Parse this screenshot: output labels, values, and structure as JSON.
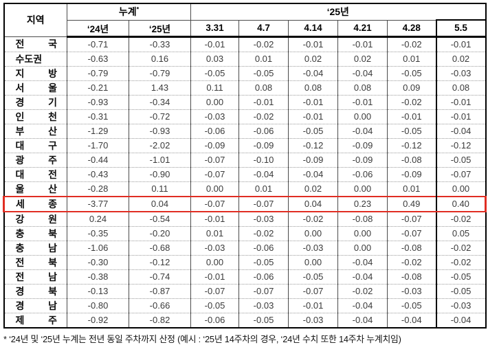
{
  "table": {
    "corner_header": "지역",
    "group_headers": {
      "cumulative": "누계",
      "cumulative_note_mark": "*",
      "year_2025": "‘25년"
    },
    "sub_headers": [
      "‘24년",
      "‘25년",
      "3.31",
      "4.7",
      "4.14",
      "4.21",
      "4.28",
      "5.5"
    ],
    "highlight_color": "#e02d22",
    "rows": [
      {
        "region": "전 국",
        "highlight": false,
        "values": [
          "-0.71",
          "-0.33",
          "-0.01",
          "-0.02",
          "-0.01",
          "-0.01",
          "-0.02",
          "-0.01"
        ]
      },
      {
        "region": "수도권",
        "highlight": false,
        "values": [
          "-0.63",
          "0.16",
          "0.03",
          "0.01",
          "0.02",
          "0.02",
          "0.01",
          "0.02"
        ]
      },
      {
        "region": "지 방",
        "highlight": false,
        "values": [
          "-0.79",
          "-0.79",
          "-0.05",
          "-0.05",
          "-0.04",
          "-0.04",
          "-0.05",
          "-0.03"
        ]
      },
      {
        "region": "서 울",
        "highlight": false,
        "values": [
          "-0.21",
          "1.43",
          "0.11",
          "0.08",
          "0.08",
          "0.08",
          "0.09",
          "0.08"
        ]
      },
      {
        "region": "경 기",
        "highlight": false,
        "values": [
          "-0.93",
          "-0.34",
          "0.00",
          "-0.01",
          "-0.01",
          "-0.01",
          "-0.02",
          "-0.01"
        ]
      },
      {
        "region": "인 천",
        "highlight": false,
        "values": [
          "-0.31",
          "-0.72",
          "-0.03",
          "-0.02",
          "-0.01",
          "0.00",
          "-0.01",
          "-0.01"
        ]
      },
      {
        "region": "부 산",
        "highlight": false,
        "values": [
          "-1.29",
          "-0.93",
          "-0.06",
          "-0.06",
          "-0.05",
          "-0.04",
          "-0.05",
          "-0.04"
        ]
      },
      {
        "region": "대 구",
        "highlight": false,
        "values": [
          "-1.70",
          "-2.02",
          "-0.09",
          "-0.09",
          "-0.12",
          "-0.09",
          "-0.12",
          "-0.12"
        ]
      },
      {
        "region": "광 주",
        "highlight": false,
        "values": [
          "-0.44",
          "-1.01",
          "-0.07",
          "-0.10",
          "-0.09",
          "-0.09",
          "-0.08",
          "-0.05"
        ]
      },
      {
        "region": "대 전",
        "highlight": false,
        "values": [
          "-0.43",
          "-0.90",
          "-0.07",
          "-0.04",
          "-0.04",
          "-0.06",
          "-0.09",
          "-0.07"
        ]
      },
      {
        "region": "울 산",
        "highlight": false,
        "values": [
          "-0.28",
          "0.11",
          "0.00",
          "0.01",
          "0.02",
          "0.00",
          "0.01",
          "0.00"
        ]
      },
      {
        "region": "세 종",
        "highlight": true,
        "values": [
          "-3.77",
          "0.04",
          "-0.07",
          "-0.07",
          "0.04",
          "0.23",
          "0.49",
          "0.40"
        ]
      },
      {
        "region": "강 원",
        "highlight": false,
        "values": [
          "0.24",
          "-0.54",
          "-0.01",
          "-0.03",
          "-0.02",
          "-0.08",
          "-0.07",
          "-0.02"
        ]
      },
      {
        "region": "충 북",
        "highlight": false,
        "values": [
          "-0.35",
          "-0.20",
          "0.01",
          "-0.02",
          "0.00",
          "0.00",
          "-0.07",
          "0.05"
        ]
      },
      {
        "region": "충 남",
        "highlight": false,
        "values": [
          "-1.06",
          "-0.68",
          "-0.03",
          "-0.06",
          "-0.03",
          "0.00",
          "-0.08",
          "-0.02"
        ]
      },
      {
        "region": "전 북",
        "highlight": false,
        "values": [
          "-0.30",
          "-0.12",
          "0.00",
          "-0.05",
          "0.00",
          "-0.04",
          "-0.02",
          "-0.02"
        ]
      },
      {
        "region": "전 남",
        "highlight": false,
        "values": [
          "-0.38",
          "-0.74",
          "-0.01",
          "-0.06",
          "-0.05",
          "-0.04",
          "-0.08",
          "-0.05"
        ]
      },
      {
        "region": "경 북",
        "highlight": false,
        "values": [
          "-0.13",
          "-0.87",
          "-0.07",
          "-0.07",
          "-0.07",
          "-0.02",
          "-0.03",
          "-0.05"
        ]
      },
      {
        "region": "경 남",
        "highlight": false,
        "values": [
          "-0.80",
          "-0.66",
          "-0.05",
          "-0.03",
          "-0.01",
          "-0.04",
          "-0.05",
          "-0.03"
        ]
      },
      {
        "region": "제 주",
        "highlight": false,
        "values": [
          "-0.92",
          "-0.82",
          "-0.06",
          "-0.05",
          "-0.03",
          "-0.04",
          "-0.04",
          "-0.04"
        ]
      }
    ]
  },
  "footnote": "* ‘24년 및 ‘25년 누계는 전년 동일 주차까지 산정 (예시 : ‘25년 14주차의 경우, ‘24년 수치 또한 14주차 누계치임)"
}
